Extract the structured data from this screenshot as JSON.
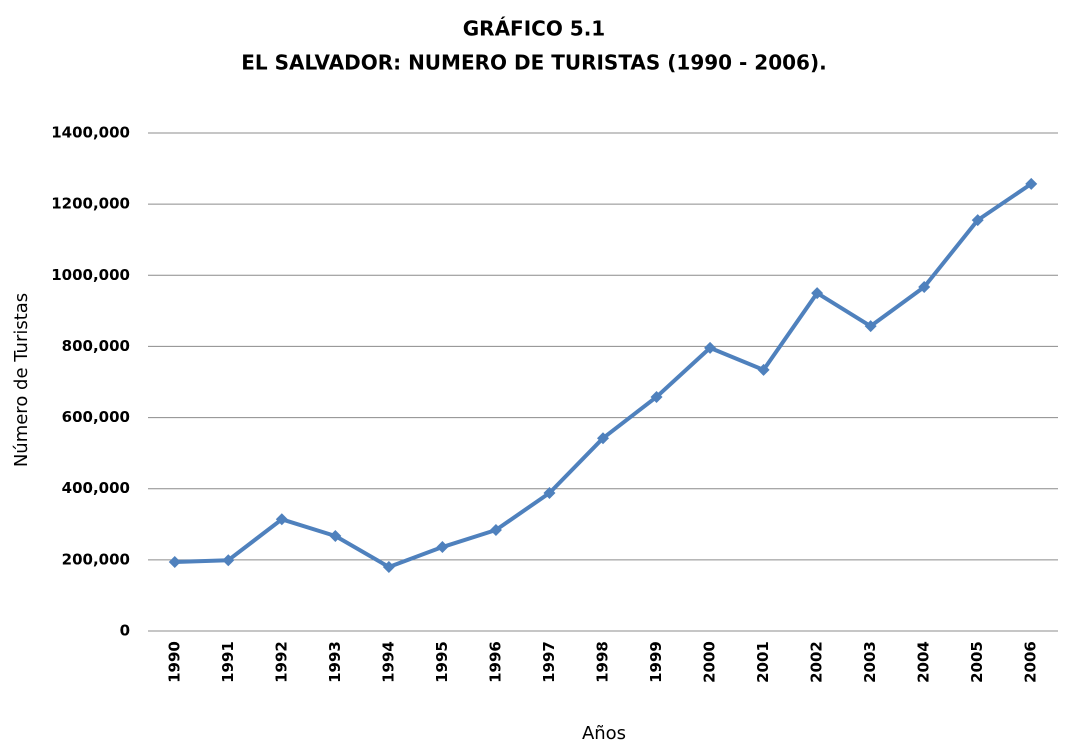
{
  "chart_data": {
    "type": "line",
    "title": "GRÁFICO 5.1",
    "subtitle": "EL SALVADOR: NUMERO DE TURISTAS (1990 - 2006).",
    "x_label": "Años",
    "y_label": "Número de Turistas",
    "categories": [
      "1990",
      "1991",
      "1992",
      "1993",
      "1994",
      "1995",
      "1996",
      "1997",
      "1998",
      "1999",
      "2000",
      "2001",
      "2002",
      "2003",
      "2004",
      "2005",
      "2006"
    ],
    "series": [
      {
        "name": "Turistas",
        "color": "#4f81bd",
        "values": [
          194000,
          199000,
          314000,
          267000,
          180000,
          236000,
          284000,
          388000,
          542000,
          658000,
          796000,
          734000,
          950000,
          857000,
          967000,
          1155000,
          1257000
        ]
      }
    ],
    "ylim": [
      0,
      1400000
    ],
    "yticks": [
      0,
      {
        "value": 200000,
        "label": "200,000"
      },
      {
        "value": 400000,
        "label": "400,000"
      },
      {
        "value": 600000,
        "label": "600,000"
      },
      {
        "value": 800000,
        "label": "800,000"
      },
      {
        "value": 1000000,
        "label": "1000,000"
      },
      {
        "value": 1200000,
        "label": "1200,000"
      },
      {
        "value": 1400000,
        "label": "1400,000"
      }
    ],
    "grid": true
  }
}
